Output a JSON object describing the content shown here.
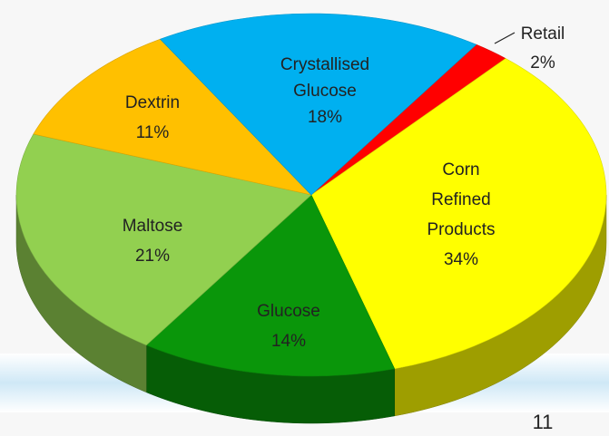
{
  "chart_data": {
    "type": "pie",
    "categories": [
      "Retail",
      "Corn Refined Products",
      "Glucose",
      "Maltose",
      "Dextrin",
      "Crystallised Glucose"
    ],
    "values": [
      2,
      34,
      14,
      21,
      11,
      18
    ],
    "value_labels": [
      "2%",
      "34%",
      "14%",
      "21%",
      "11%",
      "18%"
    ],
    "colors": [
      "#ff0000",
      "#ffff00",
      "#0a960a",
      "#92d050",
      "#ffc000",
      "#00b0f0"
    ],
    "page_number": "11"
  }
}
